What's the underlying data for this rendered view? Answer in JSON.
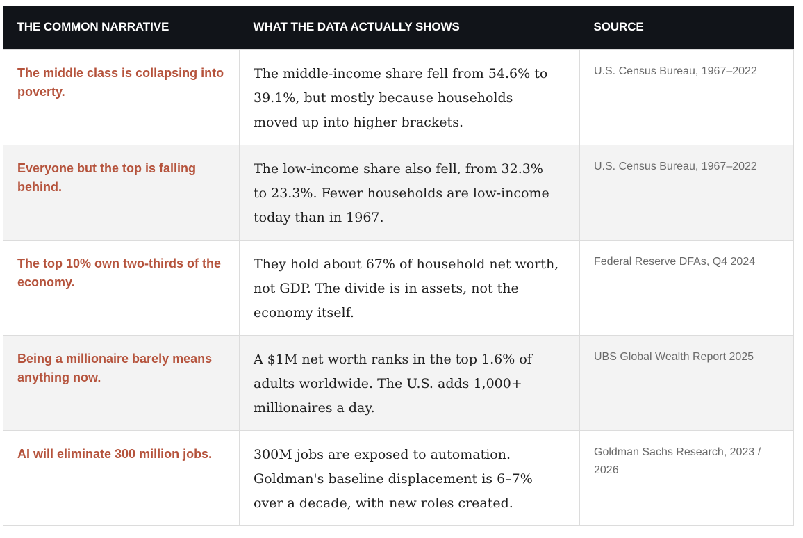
{
  "header": {
    "col1": "THE COMMON NARRATIVE",
    "col2": "WHAT THE DATA ACTUALLY SHOWS",
    "col3": "SOURCE"
  },
  "rows": [
    {
      "narrative": "The middle class is collapsing into poverty.",
      "data": "The middle-income share fell from 54.6% to 39.1%, but mostly because households moved up into higher brackets.",
      "source": "U.S. Census Bureau, 1967–2022"
    },
    {
      "narrative": "Everyone but the top is falling behind.",
      "data": "The low-income share also fell, from 32.3% to 23.3%. Fewer households are low-income today than in 1967.",
      "source": "U.S. Census Bureau, 1967–2022"
    },
    {
      "narrative": "The top 10% own two-thirds of the economy.",
      "data": "They hold about 67% of household net worth, not GDP. The divide is in assets, not the economy itself.",
      "source": "Federal Reserve DFAs, Q4 2024"
    },
    {
      "narrative": "Being a millionaire barely means anything now.",
      "data": "A $1M net worth ranks in the top 1.6% of adults worldwide. The U.S. adds 1,000+ millionaires a day.",
      "source": "UBS Global Wealth Report 2025"
    },
    {
      "narrative": "AI will eliminate 300 million jobs.",
      "data": "300M jobs are exposed to automation. Goldman's baseline displacement is 6–7% over a decade, with new roles created.",
      "source": "Goldman Sachs Research, 2023 / 2026"
    }
  ],
  "colors": {
    "header_bg": "#111419",
    "narrative_text": "#b5533c",
    "alt_row_bg": "#f3f3f3"
  }
}
